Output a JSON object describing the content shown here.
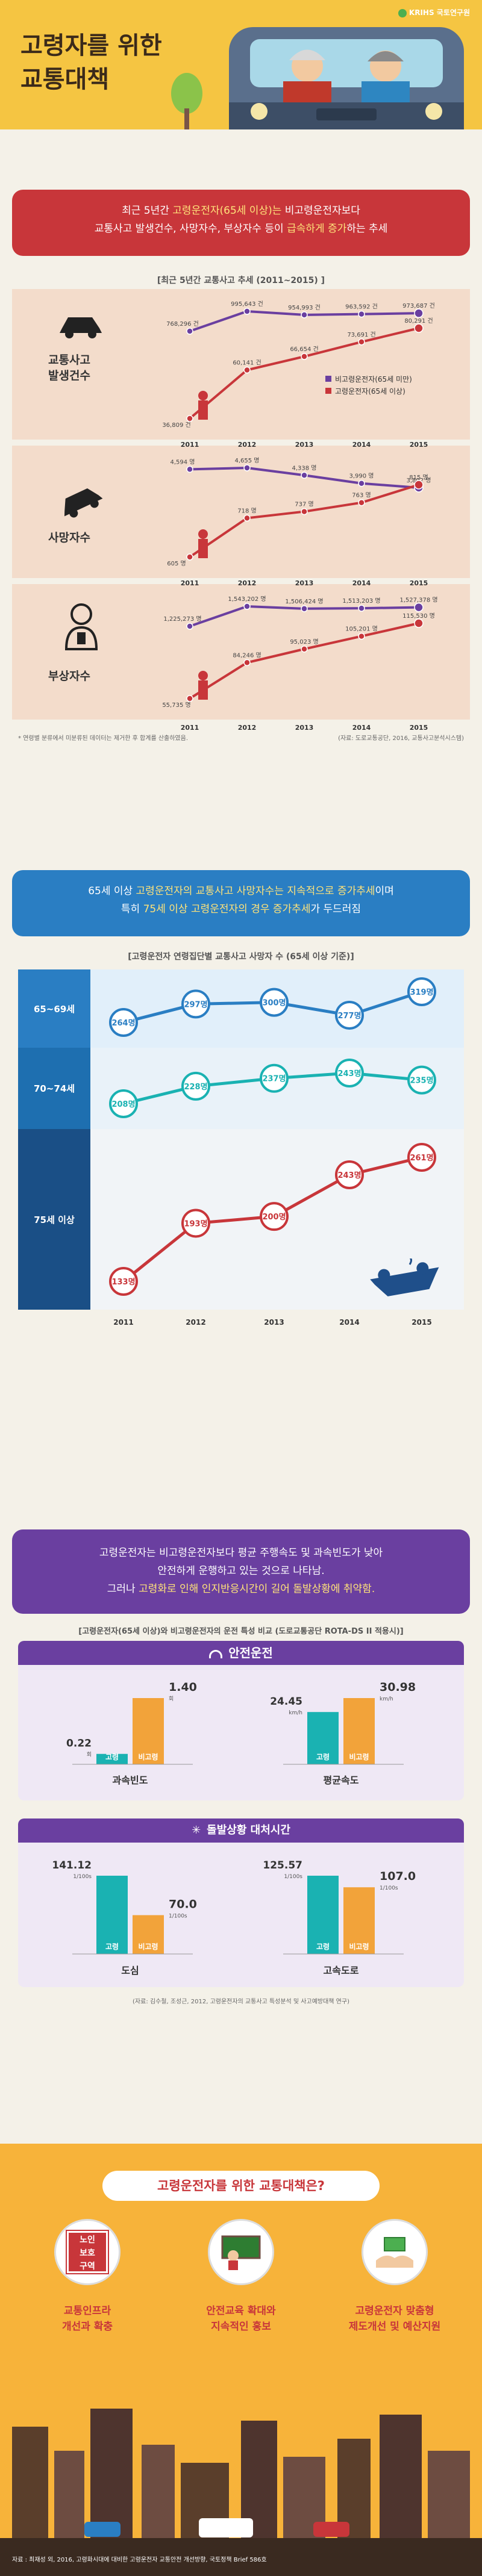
{
  "header": {
    "title_line1": "고령자를 위한",
    "title_line2": "교통대책",
    "brand": "KRIHS 국토연구원"
  },
  "section1": {
    "banner_line1_a": "최근 5년간 ",
    "banner_line1_b": "고령운전자(65세 이상)는",
    "banner_line1_c": " 비고령운전자보다",
    "banner_line2_a": "교통사고 발생건수, 사망자수, 부상자수 등이 ",
    "banner_line2_b": "급속하게 증가",
    "banner_line2_c": "하는 추세",
    "subtitle": "[최근 5년간 교통사고 추세 (2011~2015) ]",
    "categories": [
      "교통사고 발생건수",
      "사망자수",
      "부상자수"
    ],
    "legend_non_elderly": "비고령운전자(65세 미만)",
    "legend_elderly": "고령운전자(65세 이상)",
    "footnote_left": "* 연령별 분류에서 미분류된 데이터는 제거한 후 합계를 산출하였음.",
    "footnote_right": "(자료: 도로교통공단, 2016, 교통사고분석시스템)",
    "years": [
      "2011",
      "2012",
      "2013",
      "2014",
      "2015"
    ]
  },
  "chart_data": [
    {
      "type": "line",
      "title": "교통사고 발생건수",
      "x": [
        "2011",
        "2012",
        "2013",
        "2014",
        "2015"
      ],
      "series": [
        {
          "name": "비고령운전자(65세 미만)",
          "values": [
            768296,
            995643,
            954993,
            963592,
            973687
          ],
          "labels": [
            "768,296 건",
            "995,643 건",
            "954,993 건",
            "963,592 건",
            "973,687 건"
          ]
        },
        {
          "name": "고령운전자(65세 이상)",
          "values": [
            36809,
            60141,
            66654,
            73691,
            80291
          ],
          "labels": [
            "36,809 건",
            "60,141 건",
            "66,654 건",
            "73,691 건",
            "80,291 건"
          ]
        }
      ]
    },
    {
      "type": "line",
      "title": "사망자수",
      "x": [
        "2011",
        "2012",
        "2013",
        "2014",
        "2015"
      ],
      "series": [
        {
          "name": "비고령운전자(65세 미만)",
          "values": [
            4594,
            4655,
            4338,
            3990,
            3802
          ],
          "labels": [
            "4,594 명",
            "4,655 명",
            "4,338 명",
            "3,990 명",
            "3,802 명"
          ]
        },
        {
          "name": "고령운전자(65세 이상)",
          "values": [
            605,
            718,
            737,
            763,
            815
          ],
          "labels": [
            "605 명",
            "718 명",
            "737 명",
            "763 명",
            "815 명"
          ]
        }
      ]
    },
    {
      "type": "line",
      "title": "부상자수",
      "x": [
        "2011",
        "2012",
        "2013",
        "2014",
        "2015"
      ],
      "series": [
        {
          "name": "비고령운전자(65세 미만)",
          "values": [
            1225273,
            1543202,
            1506424,
            1513203,
            1527378
          ],
          "labels": [
            "1,225,273 명",
            "1,543,202 명",
            "1,506,424 명",
            "1,513,203 명",
            "1,527,378 명"
          ]
        },
        {
          "name": "고령운전자(65세 이상)",
          "values": [
            55735,
            84246,
            95023,
            105201,
            115530
          ],
          "labels": [
            "55,735 명",
            "84,246 명",
            "95,023 명",
            "105,201 명",
            "115,530 명"
          ]
        }
      ]
    },
    {
      "type": "line",
      "title": "고령운전자 연령집단별 교통사고 사망자 수 (65세 이상 기준)",
      "x": [
        "2011",
        "2012",
        "2013",
        "2014",
        "2015"
      ],
      "series": [
        {
          "name": "65~69세",
          "values": [
            264,
            297,
            300,
            277,
            319
          ]
        },
        {
          "name": "70~74세",
          "values": [
            208,
            228,
            237,
            243,
            235
          ]
        },
        {
          "name": "75세 이상",
          "values": [
            133,
            193,
            200,
            243,
            261
          ]
        }
      ]
    },
    {
      "type": "bar",
      "title": "과속빈도",
      "categories": [
        "고령",
        "비고령"
      ],
      "values": [
        0.22,
        1.4
      ],
      "unit": "회"
    },
    {
      "type": "bar",
      "title": "평균속도",
      "categories": [
        "고령",
        "비고령"
      ],
      "values": [
        24.45,
        30.98
      ],
      "unit": "km/h"
    },
    {
      "type": "bar",
      "title": "도심",
      "categories": [
        "고령",
        "비고령"
      ],
      "values": [
        141.12,
        70.0
      ],
      "unit": "1/100s"
    },
    {
      "type": "bar",
      "title": "고속도로",
      "categories": [
        "고령",
        "비고령"
      ],
      "values": [
        125.57,
        107.0
      ],
      "unit": "1/100s"
    }
  ],
  "section2": {
    "banner_line1_a": "65세 이상 ",
    "banner_line1_b": "고령운전자의 교통사고 사망자수는 지속적으로 증가추세",
    "banner_line1_c": "이며",
    "banner_line2_a": "특히 ",
    "banner_line2_b": "75세 이상 고령운전자의 경우 증가추세",
    "banner_line2_c": "가 두드러짐",
    "subtitle": "[고령운전자 연령집단별 교통사고 사망자 수 (65세 이상 기준)]",
    "groups": [
      "65~69세",
      "70~74세",
      "75세 이상"
    ],
    "row1_labels": [
      "264명",
      "297명",
      "300명",
      "277명",
      "319명"
    ],
    "row2_labels": [
      "208명",
      "228명",
      "237명",
      "243명",
      "235명"
    ],
    "row3_labels": [
      "133명",
      "193명",
      "200명",
      "243명",
      "261명"
    ],
    "years": [
      "2011",
      "2012",
      "2013",
      "2014",
      "2015"
    ]
  },
  "section3": {
    "banner_line1": "고령운전자는 비고령운전자보다 평균 주행속도 및 과속빈도가 낮아",
    "banner_line2": "안전하게 운행하고 있는 것으로 나타남.",
    "banner_line3_a": "그러나 ",
    "banner_line3_b": "고령화로 인해 인지반응시간이 길어 돌발상황에 취약함.",
    "subtitle": "[고령운전자(65세 이상)와 비고령운전자의 운전 특성 비교 (도로교통공단 ROTA-DS II 적용시)]",
    "safe_title": "안전운전",
    "reaction_title": "돌발상황 대처시간",
    "speeding_label": "과속빈도",
    "avgspeed_label": "평균속도",
    "city_label": "도심",
    "highway_label": "고속도로",
    "elderly": "고령",
    "non_elderly": "비고령",
    "speeding_elderly": "0.22",
    "speeding_elderly_unit": "회",
    "speeding_non": "1.40",
    "speeding_non_unit": "회",
    "avgspeed_elderly": "24.45",
    "avgspeed_elderly_unit": "km/h",
    "avgspeed_non": "30.98",
    "avgspeed_non_unit": "km/h",
    "city_elderly": "141.12",
    "city_non": "70.0",
    "highway_elderly": "125.57",
    "highway_non": "107.0",
    "reaction_unit": "1/100s",
    "source": "(자료: 김수철, 조성근, 2012, 고령운전자의 교통사고 특성분석 및 사고예방대책 연구)"
  },
  "section4": {
    "title": "고령운전자를 위한 교통대책은?",
    "sign_line1": "노인",
    "sign_line2": "보호",
    "sign_line3": "구역",
    "item1_line1": "교통인프라",
    "item1_line2": "개선과 확충",
    "item2_line1": "안전교육 확대와",
    "item2_line2": "지속적인 홍보",
    "item3_line1": "고령운전자 맞춤형",
    "item3_line2": "제도개선 및 예산지원",
    "footer": "자료 : 최재성 외, 2016, 고령화시대에 대비한 고령운전자 교통안전 개선방향, 국토정책 Brief 586호"
  },
  "colors": {
    "red": "#c8363a",
    "purple": "#6a3fa0",
    "blue": "#2a7ec3",
    "teal": "#1ab2b2",
    "orange": "#f2a33a",
    "yellow": "#f5c542"
  }
}
